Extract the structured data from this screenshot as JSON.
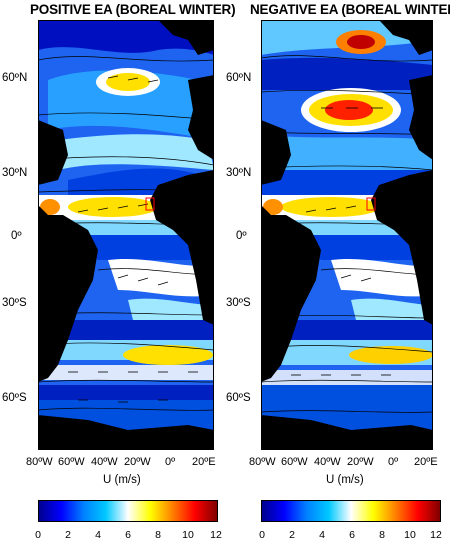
{
  "panels": [
    {
      "title": "POSITIVE EA (BOREAL WINTER)",
      "lat_labels": [
        "60ºN",
        "30ºN",
        "0º",
        "30ºS",
        "60ºS"
      ],
      "lon_labels": [
        "80ºW",
        "60ºW",
        "40ºW",
        "20ºW",
        "0º",
        "20ºE"
      ],
      "axis_label": "U (m/s)",
      "colorbar_ticks": [
        "0",
        "2",
        "4",
        "6",
        "8",
        "10",
        "12"
      ]
    },
    {
      "title": "NEGATIVE EA (BOREAL WINTER)",
      "lat_labels": [
        "60ºN",
        "30ºN",
        "0º",
        "30ºS",
        "60ºS"
      ],
      "lon_labels": [
        "80ºW",
        "60ºW",
        "40ºW",
        "20ºW",
        "0º",
        "20ºE"
      ],
      "axis_label": "U (m/s)",
      "colorbar_ticks": [
        "0",
        "2",
        "4",
        "6",
        "8",
        "10",
        "12"
      ]
    }
  ],
  "colorbar": {
    "min": 0,
    "max": 12,
    "colors": [
      "#00008f",
      "#0000ff",
      "#0080ff",
      "#00c8ff",
      "#ffffff",
      "#ffff00",
      "#ff8000",
      "#ff0000",
      "#800000"
    ]
  },
  "map": {
    "land_color": "#000000",
    "ocean_background": "#1e64f0",
    "highlight_box_color": "#ff0000"
  }
}
